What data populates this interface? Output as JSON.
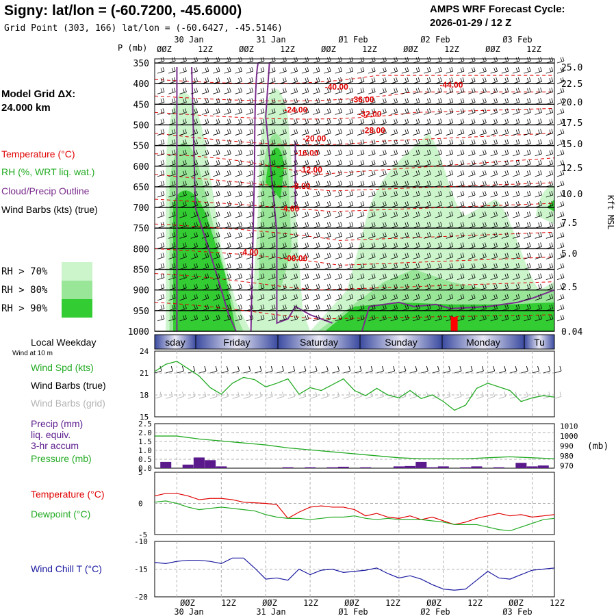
{
  "header": {
    "title": "Signy:  lat/lon = (-60.7200, -45.6000)",
    "subtitle": "Grid Point (303, 166) lat/lon = (-60.6427, -45.5146)",
    "cycle_line1": "AMPS WRF Forecast Cycle:",
    "cycle_line2": "2026-01-29 / 12  Z"
  },
  "left_panel": {
    "model_grid_line1": "Model Grid ΔX:",
    "model_grid_line2": " 24.000 km",
    "legend": [
      {
        "text": "Temperature (°C)",
        "color": "#e00000"
      },
      {
        "text": "RH (%, WRT liq. wat.)",
        "color": "#22aa22"
      },
      {
        "text": "Cloud/Precip Outline",
        "color": "#7a2d8c"
      },
      {
        "text": "Wind Barbs (kts) (true)",
        "color": "#000000"
      }
    ],
    "rh_legend": [
      {
        "text": "RH > 70%",
        "color": "#ccf5cc"
      },
      {
        "text": "RH > 80%",
        "color": "#99e699"
      },
      {
        "text": "RH > 90%",
        "color": "#33cc33"
      }
    ]
  },
  "time_axis": {
    "date_labels_top": [
      "30 Jan",
      "31 Jan",
      "Ø1 Feb",
      "Ø2 Feb",
      "Ø3 Feb"
    ],
    "hour_labels": [
      "ØØZ",
      "12Z",
      "ØØZ",
      "12Z",
      "ØØZ",
      "12Z",
      "ØØZ",
      "12Z",
      "ØØZ",
      "12Z"
    ],
    "date_labels_bottom": [
      "30 Jan",
      "31 Jan",
      "Ø1 Feb",
      "Ø2 Feb",
      "Ø3 Feb"
    ]
  },
  "weekday_bar": {
    "label": "Local Weekday",
    "days": [
      "sday",
      "Friday",
      "Saturday",
      "Sunday",
      "Monday",
      "Tu"
    ]
  },
  "chart_data": [
    {
      "type": "heatmap",
      "name": "pressure-time cross section",
      "y_axis_label": "P (mb)",
      "y_ticks": [
        "350",
        "400",
        "450",
        "500",
        "550",
        "600",
        "650",
        "700",
        "750",
        "800",
        "850",
        "900",
        "950",
        "1000"
      ],
      "right_axis_label": "Kft MSL",
      "right_ticks": [
        "25.0",
        "22.5",
        "20.0",
        "17.5",
        "15.0",
        "12.5",
        "10.0",
        "7.5",
        "5.0",
        "2.5",
        "0.04"
      ],
      "temperature_contour_labels": [
        "-40.00",
        "-44.00",
        "-36.00",
        "-32.00",
        "-24.00",
        "-28.00",
        "-20.00",
        "-16.00",
        "-12.00",
        "-8.00",
        "-4.00",
        "-4.00",
        "-00.00"
      ],
      "colors": {
        "rh70": "#ccf5cc",
        "rh80": "#99e699",
        "rh90": "#33cc33",
        "temperature": "#e00000",
        "cloud": "#7a2d8c"
      }
    },
    {
      "type": "line",
      "name": "wind speed",
      "wind_at_label": "Wind at 10 m",
      "legend": [
        {
          "text": "Wind Spd (kts)",
          "color": "#22aa22"
        },
        {
          "text": "Wind Barbs (true)",
          "color": "#000000"
        },
        {
          "text": "Wind Barbs (grid)",
          "color": "#b4b4b4"
        }
      ],
      "y_ticks": [
        "24",
        "21",
        "18",
        "15"
      ],
      "ylim": [
        15,
        24
      ],
      "x_hours": [
        0,
        3,
        6,
        9,
        12,
        15,
        18,
        21,
        24,
        27,
        30,
        33,
        36,
        39,
        42,
        45,
        48,
        51,
        54,
        57,
        60,
        63,
        66,
        69,
        72,
        75,
        78,
        81,
        84,
        87,
        90,
        93,
        96,
        99,
        102,
        105,
        108
      ],
      "values": [
        21.2,
        22.2,
        22.6,
        21.6,
        20.6,
        19.0,
        18.1,
        19.6,
        20.4,
        20.1,
        19.1,
        19.6,
        20.2,
        18.1,
        19.0,
        18.6,
        19.4,
        20.2,
        18.6,
        17.9,
        18.9,
        18.0,
        17.6,
        18.6,
        17.5,
        18.0,
        17.1,
        15.9,
        16.6,
        18.9,
        19.6,
        19.1,
        18.6,
        17.1,
        17.6,
        17.9,
        17.7
      ]
    },
    {
      "type": "bar",
      "name": "precip and pressure",
      "legend": [
        {
          "text": "Precip (mm)",
          "color": "#5b1a8c"
        },
        {
          "text": "liq. equiv.",
          "color": "#5b1a8c"
        },
        {
          "text": "3-hr accum",
          "color": "#5b1a8c"
        },
        {
          "text": "Pressure (mb)",
          "color": "#22aa22"
        }
      ],
      "y_ticks": [
        "2.5",
        "2.0",
        "1.5",
        "1.0",
        "0.5",
        "0.0"
      ],
      "ylim": [
        0,
        2.5
      ],
      "y2_ticks": [
        "1010",
        "1000",
        "990",
        "980",
        "970"
      ],
      "y2lim": [
        967.5,
        1012.5
      ],
      "y2_label": "(mb)",
      "precip_hours": [
        3,
        9,
        12,
        15,
        18,
        36,
        42,
        48,
        51,
        57,
        66,
        69,
        72,
        75,
        78,
        84,
        87,
        93,
        99,
        102,
        105
      ],
      "precip_values": [
        0.35,
        0.2,
        0.6,
        0.45,
        0.1,
        0.05,
        0.05,
        0.05,
        0.08,
        0.05,
        0.1,
        0.12,
        0.35,
        0.05,
        0.1,
        0.05,
        0.1,
        0.05,
        0.3,
        0.1,
        0.15
      ],
      "pressure_hours": [
        0,
        6,
        12,
        18,
        24,
        30,
        36,
        42,
        48,
        54,
        60,
        66,
        72,
        78,
        84,
        90,
        96,
        102,
        108
      ],
      "pressure_values": [
        1000,
        1000,
        997,
        995,
        993,
        991,
        988,
        986,
        984,
        982,
        980,
        978,
        977,
        977,
        977,
        978,
        979,
        978,
        977
      ],
      "colors": {
        "precip": "#5b1a8c",
        "pressure": "#22aa22"
      }
    },
    {
      "type": "line",
      "name": "temperature and dewpoint",
      "legend": [
        {
          "text": "Temperature (°C)",
          "color": "#e00000"
        },
        {
          "text": "Dewpoint (°C)",
          "color": "#22aa22"
        }
      ],
      "y_ticks": [
        "5",
        "0",
        "-5"
      ],
      "ylim": [
        -5,
        5
      ],
      "x_hours": [
        0,
        3,
        6,
        9,
        12,
        15,
        18,
        21,
        24,
        27,
        30,
        33,
        36,
        39,
        42,
        45,
        48,
        51,
        54,
        57,
        60,
        63,
        66,
        69,
        72,
        75,
        78,
        81,
        84,
        87,
        90,
        93,
        96,
        99,
        102,
        105,
        108
      ],
      "series": [
        {
          "values": [
            1.2,
            1.6,
            1.6,
            1.2,
            0.6,
            0.8,
            0.8,
            0.6,
            0.2,
            0.1,
            0.0,
            -0.2,
            -2.4,
            -1.4,
            -0.6,
            -0.4,
            -0.6,
            -0.6,
            -1.0,
            -2.0,
            -1.6,
            -2.2,
            -2.4,
            -2.0,
            -2.6,
            -2.2,
            -2.8,
            -3.4,
            -3.0,
            -2.4,
            -2.0,
            -1.6,
            -2.0,
            -1.8,
            -2.2,
            -2.0,
            -1.8
          ]
        },
        {
          "values": [
            0.2,
            0.4,
            0.0,
            -0.6,
            -1.0,
            -0.8,
            -0.6,
            -0.8,
            -1.0,
            -1.2,
            -1.8,
            -2.2,
            -2.4,
            -2.4,
            -2.6,
            -2.4,
            -2.2,
            -2.2,
            -2.0,
            -2.4,
            -2.6,
            -2.4,
            -2.6,
            -2.6,
            -2.6,
            -2.8,
            -3.0,
            -3.4,
            -3.4,
            -3.4,
            -3.8,
            -4.2,
            -4.4,
            -3.8,
            -3.2,
            -2.6,
            -2.4
          ]
        }
      ],
      "colors": {
        "temperature": "#e00000",
        "dewpoint": "#22aa22"
      }
    },
    {
      "type": "line",
      "name": "wind chill",
      "legend": [
        {
          "text": "Wind Chill T (°C)",
          "color": "#1a1aa0"
        }
      ],
      "y_ticks": [
        "-10",
        "-15",
        "-20"
      ],
      "ylim": [
        -20,
        -10
      ],
      "x_hours": [
        0,
        3,
        6,
        9,
        12,
        15,
        18,
        21,
        24,
        27,
        30,
        33,
        36,
        39,
        42,
        45,
        48,
        51,
        54,
        57,
        60,
        63,
        66,
        69,
        72,
        75,
        78,
        81,
        84,
        87,
        90,
        93,
        96,
        99,
        102,
        105,
        108
      ],
      "values": [
        -13.8,
        -14.0,
        -13.6,
        -13.4,
        -13.4,
        -13.6,
        -14.0,
        -13.0,
        -13.0,
        -14.8,
        -16.8,
        -16.6,
        -17.0,
        -15.0,
        -16.0,
        -15.2,
        -15.0,
        -15.6,
        -15.4,
        -15.2,
        -14.8,
        -15.8,
        -16.6,
        -16.2,
        -16.8,
        -17.8,
        -18.6,
        -18.8,
        -18.6,
        -17.0,
        -15.4,
        -16.6,
        -16.8,
        -16.0,
        -15.2,
        -15.0,
        -14.8
      ],
      "color": "#1a1aa0"
    }
  ]
}
